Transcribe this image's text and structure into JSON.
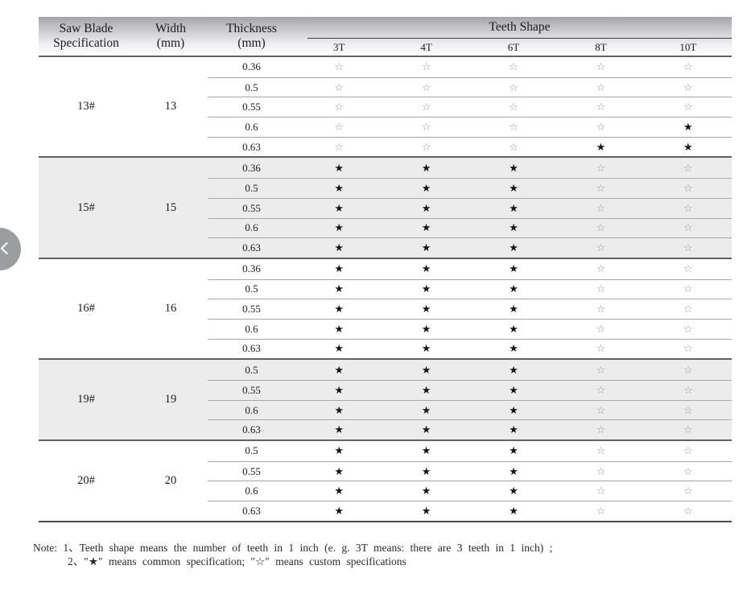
{
  "colors": {
    "star_common": "#151515",
    "star_custom": "#9b9b9b",
    "shaded_block": "#ececec",
    "header_gradient_top": "#a4a4a9",
    "header_gradient_bottom": "#fdfdfe"
  },
  "carousel": {
    "prev_icon": "chevron-left"
  },
  "table": {
    "header": {
      "spec_line1": "Saw Blade",
      "spec_line2": "Specification",
      "width_line1": "Width",
      "width_line2": "(mm)",
      "thickness_line1": "Thickness",
      "thickness_line2": "(mm)",
      "teeth_group": "Teeth Shape",
      "teeth_cols": [
        "3T",
        "4T",
        "6T",
        "8T",
        "10T"
      ]
    },
    "legend": {
      "common": "★",
      "custom": "☆"
    },
    "blocks": [
      {
        "spec": "13#",
        "width": "13",
        "shaded": false,
        "rows": [
          {
            "thickness": "0.36",
            "teeth": [
              "custom",
              "custom",
              "custom",
              "custom",
              "custom"
            ]
          },
          {
            "thickness": "0.5",
            "teeth": [
              "custom",
              "custom",
              "custom",
              "custom",
              "custom"
            ]
          },
          {
            "thickness": "0.55",
            "teeth": [
              "custom",
              "custom",
              "custom",
              "custom",
              "custom"
            ]
          },
          {
            "thickness": "0.6",
            "teeth": [
              "custom",
              "custom",
              "custom",
              "custom",
              "common"
            ]
          },
          {
            "thickness": "0.63",
            "teeth": [
              "custom",
              "custom",
              "custom",
              "common",
              "common"
            ]
          }
        ]
      },
      {
        "spec": "15#",
        "width": "15",
        "shaded": true,
        "rows": [
          {
            "thickness": "0.36",
            "teeth": [
              "common",
              "common",
              "common",
              "custom",
              "custom"
            ]
          },
          {
            "thickness": "0.5",
            "teeth": [
              "common",
              "common",
              "common",
              "custom",
              "custom"
            ]
          },
          {
            "thickness": "0.55",
            "teeth": [
              "common",
              "common",
              "common",
              "custom",
              "custom"
            ]
          },
          {
            "thickness": "0.6",
            "teeth": [
              "common",
              "common",
              "common",
              "custom",
              "custom"
            ]
          },
          {
            "thickness": "0.63",
            "teeth": [
              "common",
              "common",
              "common",
              "custom",
              "custom"
            ]
          }
        ]
      },
      {
        "spec": "16#",
        "width": "16",
        "shaded": false,
        "rows": [
          {
            "thickness": "0.36",
            "teeth": [
              "common",
              "common",
              "common",
              "custom",
              "custom"
            ]
          },
          {
            "thickness": "0.5",
            "teeth": [
              "common",
              "common",
              "common",
              "custom",
              "custom"
            ]
          },
          {
            "thickness": "0.55",
            "teeth": [
              "common",
              "common",
              "common",
              "custom",
              "custom"
            ]
          },
          {
            "thickness": "0.6",
            "teeth": [
              "common",
              "common",
              "common",
              "custom",
              "custom"
            ]
          },
          {
            "thickness": "0.63",
            "teeth": [
              "common",
              "common",
              "common",
              "custom",
              "custom"
            ]
          }
        ]
      },
      {
        "spec": "19#",
        "width": "19",
        "shaded": true,
        "rows": [
          {
            "thickness": "0.5",
            "teeth": [
              "common",
              "common",
              "common",
              "custom",
              "custom"
            ]
          },
          {
            "thickness": "0.55",
            "teeth": [
              "common",
              "common",
              "common",
              "custom",
              "custom"
            ]
          },
          {
            "thickness": "0.6",
            "teeth": [
              "common",
              "common",
              "common",
              "custom",
              "custom"
            ]
          },
          {
            "thickness": "0.63",
            "teeth": [
              "common",
              "common",
              "common",
              "custom",
              "custom"
            ]
          }
        ]
      },
      {
        "spec": "20#",
        "width": "20",
        "shaded": false,
        "rows": [
          {
            "thickness": "0.5",
            "teeth": [
              "common",
              "common",
              "common",
              "custom",
              "custom"
            ]
          },
          {
            "thickness": "0.55",
            "teeth": [
              "common",
              "common",
              "common",
              "custom",
              "custom"
            ]
          },
          {
            "thickness": "0.6",
            "teeth": [
              "common",
              "common",
              "common",
              "custom",
              "custom"
            ]
          },
          {
            "thickness": "0.63",
            "teeth": [
              "common",
              "common",
              "common",
              "custom",
              "custom"
            ]
          }
        ]
      }
    ]
  },
  "note": {
    "label": "Note:",
    "items": [
      "1、Teeth shape means the number of teeth in 1 inch (e. g.  3T   means: there are 3 teeth in 1 inch) ;",
      "2、″★″ means common specification;  ″☆″ means custom specifications"
    ]
  }
}
